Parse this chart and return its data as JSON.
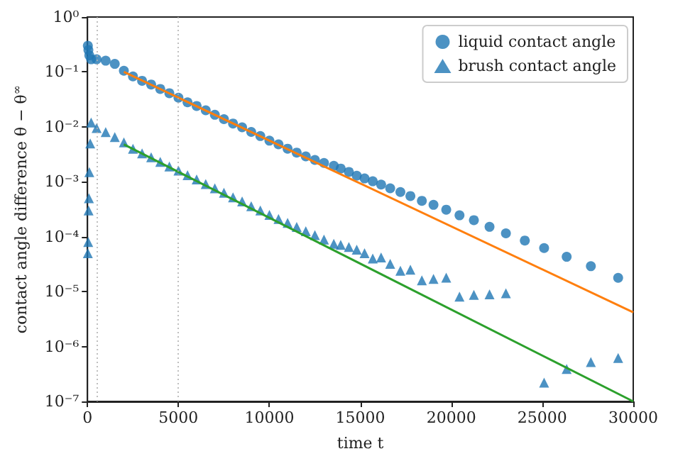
{
  "chart_data": {
    "type": "scatter",
    "xlabel": "time t",
    "ylabel": "contact angle difference θ − θ$^{∞}$",
    "xlim": [
      0,
      30000
    ],
    "xticks": [
      0,
      5000,
      10000,
      15000,
      20000,
      25000,
      30000
    ],
    "ylim": [
      1e-07,
      1
    ],
    "log": true,
    "yticks": [
      {
        "value": 1e-07,
        "label": "10⁻⁷"
      },
      {
        "value": 1e-06,
        "label": "10⁻⁶"
      },
      {
        "value": 1e-05,
        "label": "10⁻⁵"
      },
      {
        "value": 0.0001,
        "label": "10⁻⁴"
      },
      {
        "value": 0.001,
        "label": "10⁻³"
      },
      {
        "value": 0.01,
        "label": "10⁻²"
      },
      {
        "value": 0.1,
        "label": "10⁻¹"
      },
      {
        "value": 1,
        "label": "10⁰"
      }
    ],
    "grid": false,
    "legend": "top right",
    "ref_lines": [
      {
        "axis": "x",
        "value": 500,
        "color": "#b0b0b0",
        "line_style": "dotted"
      },
      {
        "axis": "x",
        "value": 5000,
        "color": "#b0b0b0",
        "line_style": "dotted"
      }
    ],
    "series": [
      {
        "name": "liquid contact angle",
        "marker": "circle",
        "color": "#1f77b4",
        "x": [
          20,
          50,
          100,
          200,
          500,
          1000,
          1500,
          2000,
          2500,
          3000,
          3500,
          4000,
          4500,
          5000,
          5500,
          6000,
          6500,
          7000,
          7500,
          8000,
          8500,
          9000,
          9500,
          10000,
          10500,
          11000,
          11500,
          12000,
          12500,
          13000,
          13540,
          13920,
          14370,
          14800,
          15230,
          15680,
          16140,
          16640,
          17200,
          17750,
          18380,
          19020,
          19720,
          20450,
          21240,
          22100,
          23000,
          24040,
          25100,
          26340,
          27670,
          29170
        ],
        "values": [
          0.3,
          0.25,
          0.2,
          0.17,
          0.17,
          0.16,
          0.14,
          0.105,
          0.083,
          0.069,
          0.059,
          0.049,
          0.041,
          0.034,
          0.028,
          0.024,
          0.02,
          0.0166,
          0.0138,
          0.0115,
          0.0098,
          0.0081,
          0.0068,
          0.0056,
          0.0048,
          0.004,
          0.0034,
          0.0029,
          0.0025,
          0.0022,
          0.00195,
          0.00174,
          0.00151,
          0.00129,
          0.00115,
          0.00102,
          0.00089,
          0.00076,
          0.00065,
          0.00055,
          0.00045,
          0.00038,
          0.00031,
          0.000245,
          0.0002,
          0.000151,
          0.000115,
          8.5e-05,
          6.2e-05,
          4.3e-05,
          2.9e-05,
          1.78e-05
        ]
      },
      {
        "name": "brush contact angle",
        "marker": "triangle",
        "color": "#1f77b4",
        "x": [
          20,
          40,
          60,
          80,
          100,
          150,
          200,
          500,
          1000,
          1500,
          2000,
          2500,
          3000,
          3500,
          4000,
          4500,
          5000,
          5500,
          6000,
          6500,
          7000,
          7500,
          8000,
          8500,
          9000,
          9500,
          10000,
          10500,
          11000,
          11500,
          12000,
          12500,
          13000,
          13540,
          13920,
          14370,
          14800,
          15230,
          15680,
          16140,
          16640,
          17200,
          17750,
          18380,
          19020,
          19720,
          20450,
          21240,
          22100,
          23000,
          25100,
          26340,
          27670,
          29170
        ],
        "values": [
          5e-05,
          8e-05,
          0.0003,
          0.0005,
          0.0015,
          0.005,
          0.012,
          0.0095,
          0.008,
          0.0065,
          0.0052,
          0.004,
          0.0033,
          0.0028,
          0.0023,
          0.0019,
          0.0016,
          0.00132,
          0.0011,
          0.00091,
          0.00076,
          0.00063,
          0.00052,
          0.00044,
          0.00036,
          0.0003,
          0.00025,
          0.00021,
          0.000178,
          0.00015,
          0.000126,
          0.000107,
          8.9e-05,
          7.4e-05,
          7.1e-05,
          6.5e-05,
          5.8e-05,
          5e-05,
          4e-05,
          4.2e-05,
          3.2e-05,
          2.4e-05,
          2.5e-05,
          1.6e-05,
          1.7e-05,
          1.8e-05,
          8.1e-06,
          8.7e-06,
          8.9e-06,
          9.3e-06,
          2.2e-07,
          3.9e-07,
          5.2e-07,
          6.2e-07
        ]
      },
      {
        "type": "line",
        "marker": "none",
        "color": "#ff7f0e",
        "x": [
          2000,
          30000
        ],
        "values": [
          0.1,
          4.2e-06
        ]
      },
      {
        "type": "line",
        "marker": "none",
        "color": "#2ca02c",
        "x": [
          2000,
          30000
        ],
        "values": [
          0.0048,
          1e-07
        ]
      }
    ]
  }
}
